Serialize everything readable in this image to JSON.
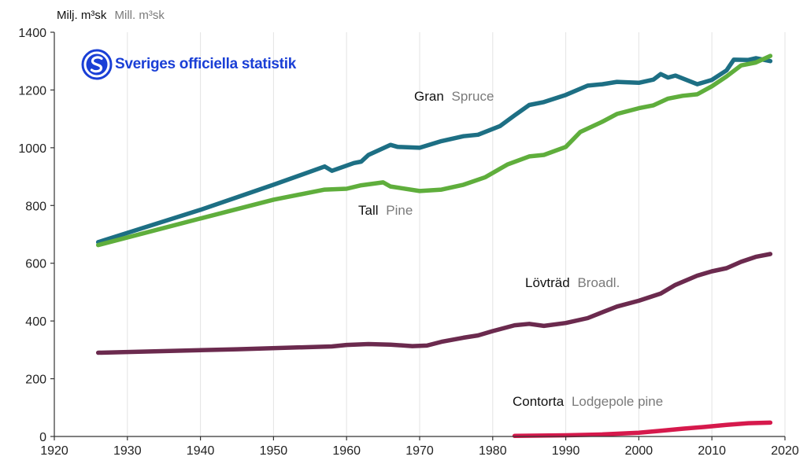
{
  "logo": {
    "text": "Sveriges officiella statistik"
  },
  "chart_data": {
    "type": "line",
    "unit_label": {
      "sv": "Milj. m³sk",
      "en": "Mill. m³sk"
    },
    "xlim": [
      1920,
      2020
    ],
    "ylim": [
      0,
      1400
    ],
    "x_ticks": [
      1920,
      1930,
      1940,
      1950,
      1960,
      1970,
      1980,
      1990,
      2000,
      2010,
      2020
    ],
    "y_ticks": [
      0,
      200,
      400,
      600,
      800,
      1000,
      1200,
      1400
    ],
    "grid": "vertical",
    "legend": "inline",
    "series": [
      {
        "name_sv": "Gran",
        "name_en": "Spruce",
        "color": "#1d6f84",
        "points": [
          [
            1926,
            673
          ],
          [
            1940,
            785
          ],
          [
            1950,
            872
          ],
          [
            1957,
            935
          ],
          [
            1958,
            920
          ],
          [
            1961,
            947
          ],
          [
            1962,
            952
          ],
          [
            1963,
            975
          ],
          [
            1966,
            1010
          ],
          [
            1967,
            1003
          ],
          [
            1970,
            1000
          ],
          [
            1973,
            1023
          ],
          [
            1976,
            1040
          ],
          [
            1978,
            1045
          ],
          [
            1981,
            1075
          ],
          [
            1983,
            1112
          ],
          [
            1985,
            1148
          ],
          [
            1987,
            1158
          ],
          [
            1990,
            1183
          ],
          [
            1993,
            1215
          ],
          [
            1995,
            1220
          ],
          [
            1997,
            1228
          ],
          [
            2000,
            1225
          ],
          [
            2002,
            1236
          ],
          [
            2003,
            1255
          ],
          [
            2004,
            1243
          ],
          [
            2005,
            1250
          ],
          [
            2008,
            1220
          ],
          [
            2010,
            1235
          ],
          [
            2012,
            1268
          ],
          [
            2013,
            1305
          ],
          [
            2015,
            1304
          ],
          [
            2016,
            1310
          ],
          [
            2018,
            1300
          ]
        ]
      },
      {
        "name_sv": "Tall",
        "name_en": "Pine",
        "color": "#5fae3c",
        "points": [
          [
            1926,
            663
          ],
          [
            1940,
            755
          ],
          [
            1950,
            820
          ],
          [
            1957,
            855
          ],
          [
            1960,
            858
          ],
          [
            1962,
            870
          ],
          [
            1965,
            880
          ],
          [
            1966,
            866
          ],
          [
            1970,
            850
          ],
          [
            1973,
            855
          ],
          [
            1976,
            872
          ],
          [
            1979,
            898
          ],
          [
            1982,
            942
          ],
          [
            1985,
            970
          ],
          [
            1987,
            975
          ],
          [
            1990,
            1003
          ],
          [
            1992,
            1055
          ],
          [
            1995,
            1090
          ],
          [
            1997,
            1117
          ],
          [
            2000,
            1137
          ],
          [
            2002,
            1147
          ],
          [
            2004,
            1170
          ],
          [
            2006,
            1180
          ],
          [
            2008,
            1185
          ],
          [
            2010,
            1213
          ],
          [
            2012,
            1247
          ],
          [
            2014,
            1285
          ],
          [
            2016,
            1295
          ],
          [
            2018,
            1318
          ]
        ]
      },
      {
        "name_sv": "Lövträd",
        "name_en": "Broadl.",
        "color": "#6b2a4e",
        "points": [
          [
            1926,
            290
          ],
          [
            1945,
            302
          ],
          [
            1958,
            312
          ],
          [
            1960,
            317
          ],
          [
            1963,
            320
          ],
          [
            1966,
            318
          ],
          [
            1969,
            313
          ],
          [
            1971,
            315
          ],
          [
            1973,
            328
          ],
          [
            1976,
            342
          ],
          [
            1978,
            350
          ],
          [
            1980,
            365
          ],
          [
            1983,
            385
          ],
          [
            1985,
            390
          ],
          [
            1987,
            383
          ],
          [
            1990,
            393
          ],
          [
            1993,
            410
          ],
          [
            1995,
            430
          ],
          [
            1997,
            450
          ],
          [
            2000,
            470
          ],
          [
            2003,
            495
          ],
          [
            2005,
            525
          ],
          [
            2008,
            557
          ],
          [
            2010,
            572
          ],
          [
            2012,
            583
          ],
          [
            2014,
            605
          ],
          [
            2016,
            622
          ],
          [
            2018,
            632
          ]
        ]
      },
      {
        "name_sv": "Contorta",
        "name_en": "Lodgepole pine",
        "color": "#d6194c",
        "points": [
          [
            1983,
            2
          ],
          [
            1990,
            4
          ],
          [
            1995,
            7
          ],
          [
            2000,
            13
          ],
          [
            2003,
            20
          ],
          [
            2006,
            27
          ],
          [
            2009,
            33
          ],
          [
            2012,
            40
          ],
          [
            2015,
            46
          ],
          [
            2018,
            48
          ]
        ]
      }
    ]
  }
}
